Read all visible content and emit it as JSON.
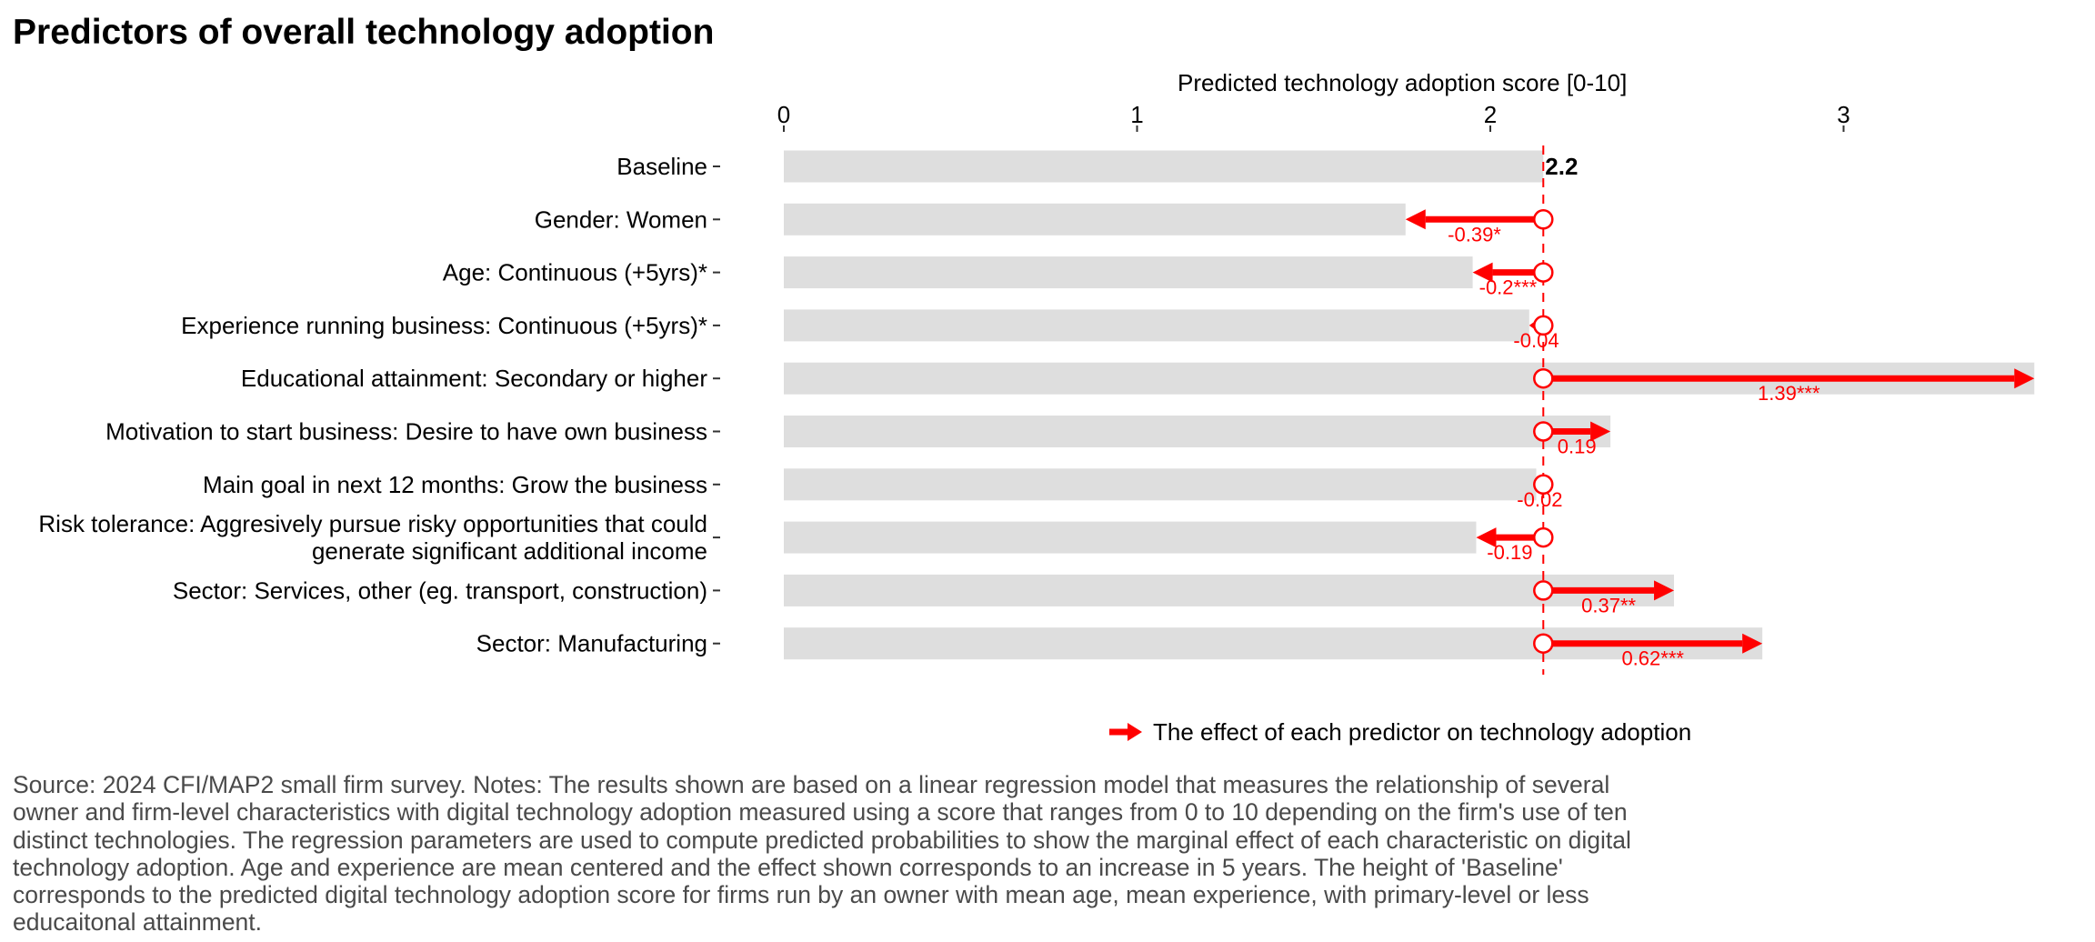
{
  "chart_data": {
    "type": "bar",
    "title": "Predictors of overall technology adoption",
    "xlabel": "Predicted technology adoption score [0-10]",
    "xlim": [
      0,
      3.6
    ],
    "x_ticks": [
      0,
      1,
      2,
      3
    ],
    "baseline": 2.15,
    "baseline_label": "2.2",
    "categories": [
      "Baseline",
      "Gender: Women",
      "Age: Continuous (+5yrs)*",
      "Experience running business: Continuous (+5yrs)*",
      "Educational attainment: Secondary or higher",
      "Motivation to start business: Desire to have own business",
      "Main goal in next 12 months: Grow the business",
      [
        "Risk tolerance: Aggresively pursue risky opportunities that could",
        "generate significant additional income"
      ],
      "Sector: Services, other (eg. transport, construction)",
      "Sector: Manufacturing"
    ],
    "effects": [
      null,
      -0.39,
      -0.2,
      -0.04,
      1.39,
      0.19,
      -0.02,
      -0.19,
      0.37,
      0.62
    ],
    "effect_labels": [
      "",
      "-0.39*",
      "-0.2***",
      "-0.04",
      "1.39***",
      "0.19",
      "-0.02",
      "-0.19",
      "0.37**",
      "0.62***"
    ],
    "legend": [
      {
        "label": "The effect of each predictor on technology adoption",
        "color": "#ff0000",
        "icon": "arrow-right-icon"
      }
    ],
    "colors": {
      "bar": "#dedede",
      "effect": "#ff0000",
      "text": "#000000"
    }
  },
  "source": "Source: 2024 CFI/MAP2 small firm survey. Notes: The results shown are based on a linear regression model that measures the relationship of several owner and firm-level characteristics with digital technology adoption measured using a score that ranges from 0 to 10 depending on the firm's use of ten distinct technologies. The regression parameters are used to compute predicted probabilities to show the marginal effect of each characteristic on digital technology adoption. Age and experience are mean centered and the effect shown corresponds to an increase in 5 years. The height of 'Baseline' corresponds to the predicted digital technology adoption score for firms run by an owner with mean age, mean experience, with primary-level or less educaitonal attainment."
}
